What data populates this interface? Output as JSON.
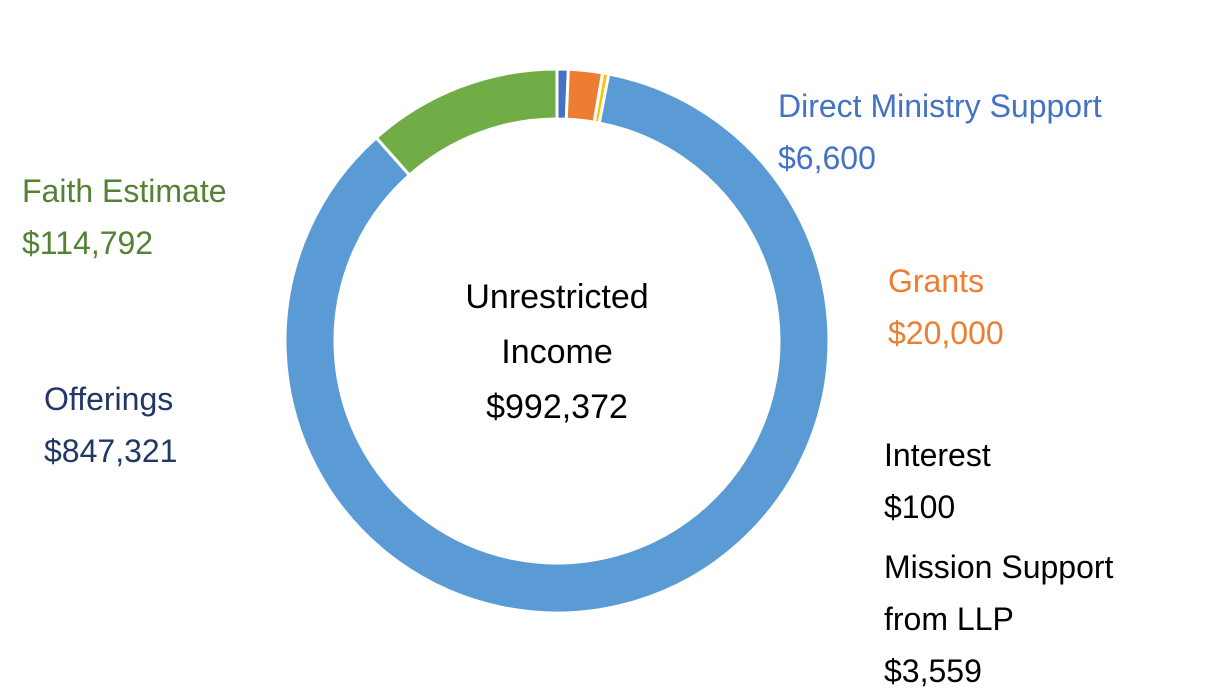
{
  "chart_data": {
    "type": "donut",
    "center_label": "Unrestricted Income",
    "center_value": {
      "value": 992372,
      "label": "$992,372"
    },
    "categories": [
      "Direct Ministry Support",
      "Grants",
      "Interest",
      "Mission Support from LLP",
      "Offerings",
      "Faith Estimate"
    ],
    "values": [
      6600,
      20000,
      100,
      3559,
      847321,
      114792
    ],
    "value_labels": [
      "$6,600",
      "$20,000",
      "$100",
      "$3,559",
      "$847,321",
      "$114,792"
    ],
    "colors": [
      "#4472c4",
      "#ed7d31",
      "#a5a5a5",
      "#ffc000",
      "#5b9bd5",
      "#70ad47"
    ],
    "label_colors": [
      "#4472c4",
      "#ed7d31",
      "#000000",
      "#000000",
      "#203864",
      "#548235"
    ]
  }
}
